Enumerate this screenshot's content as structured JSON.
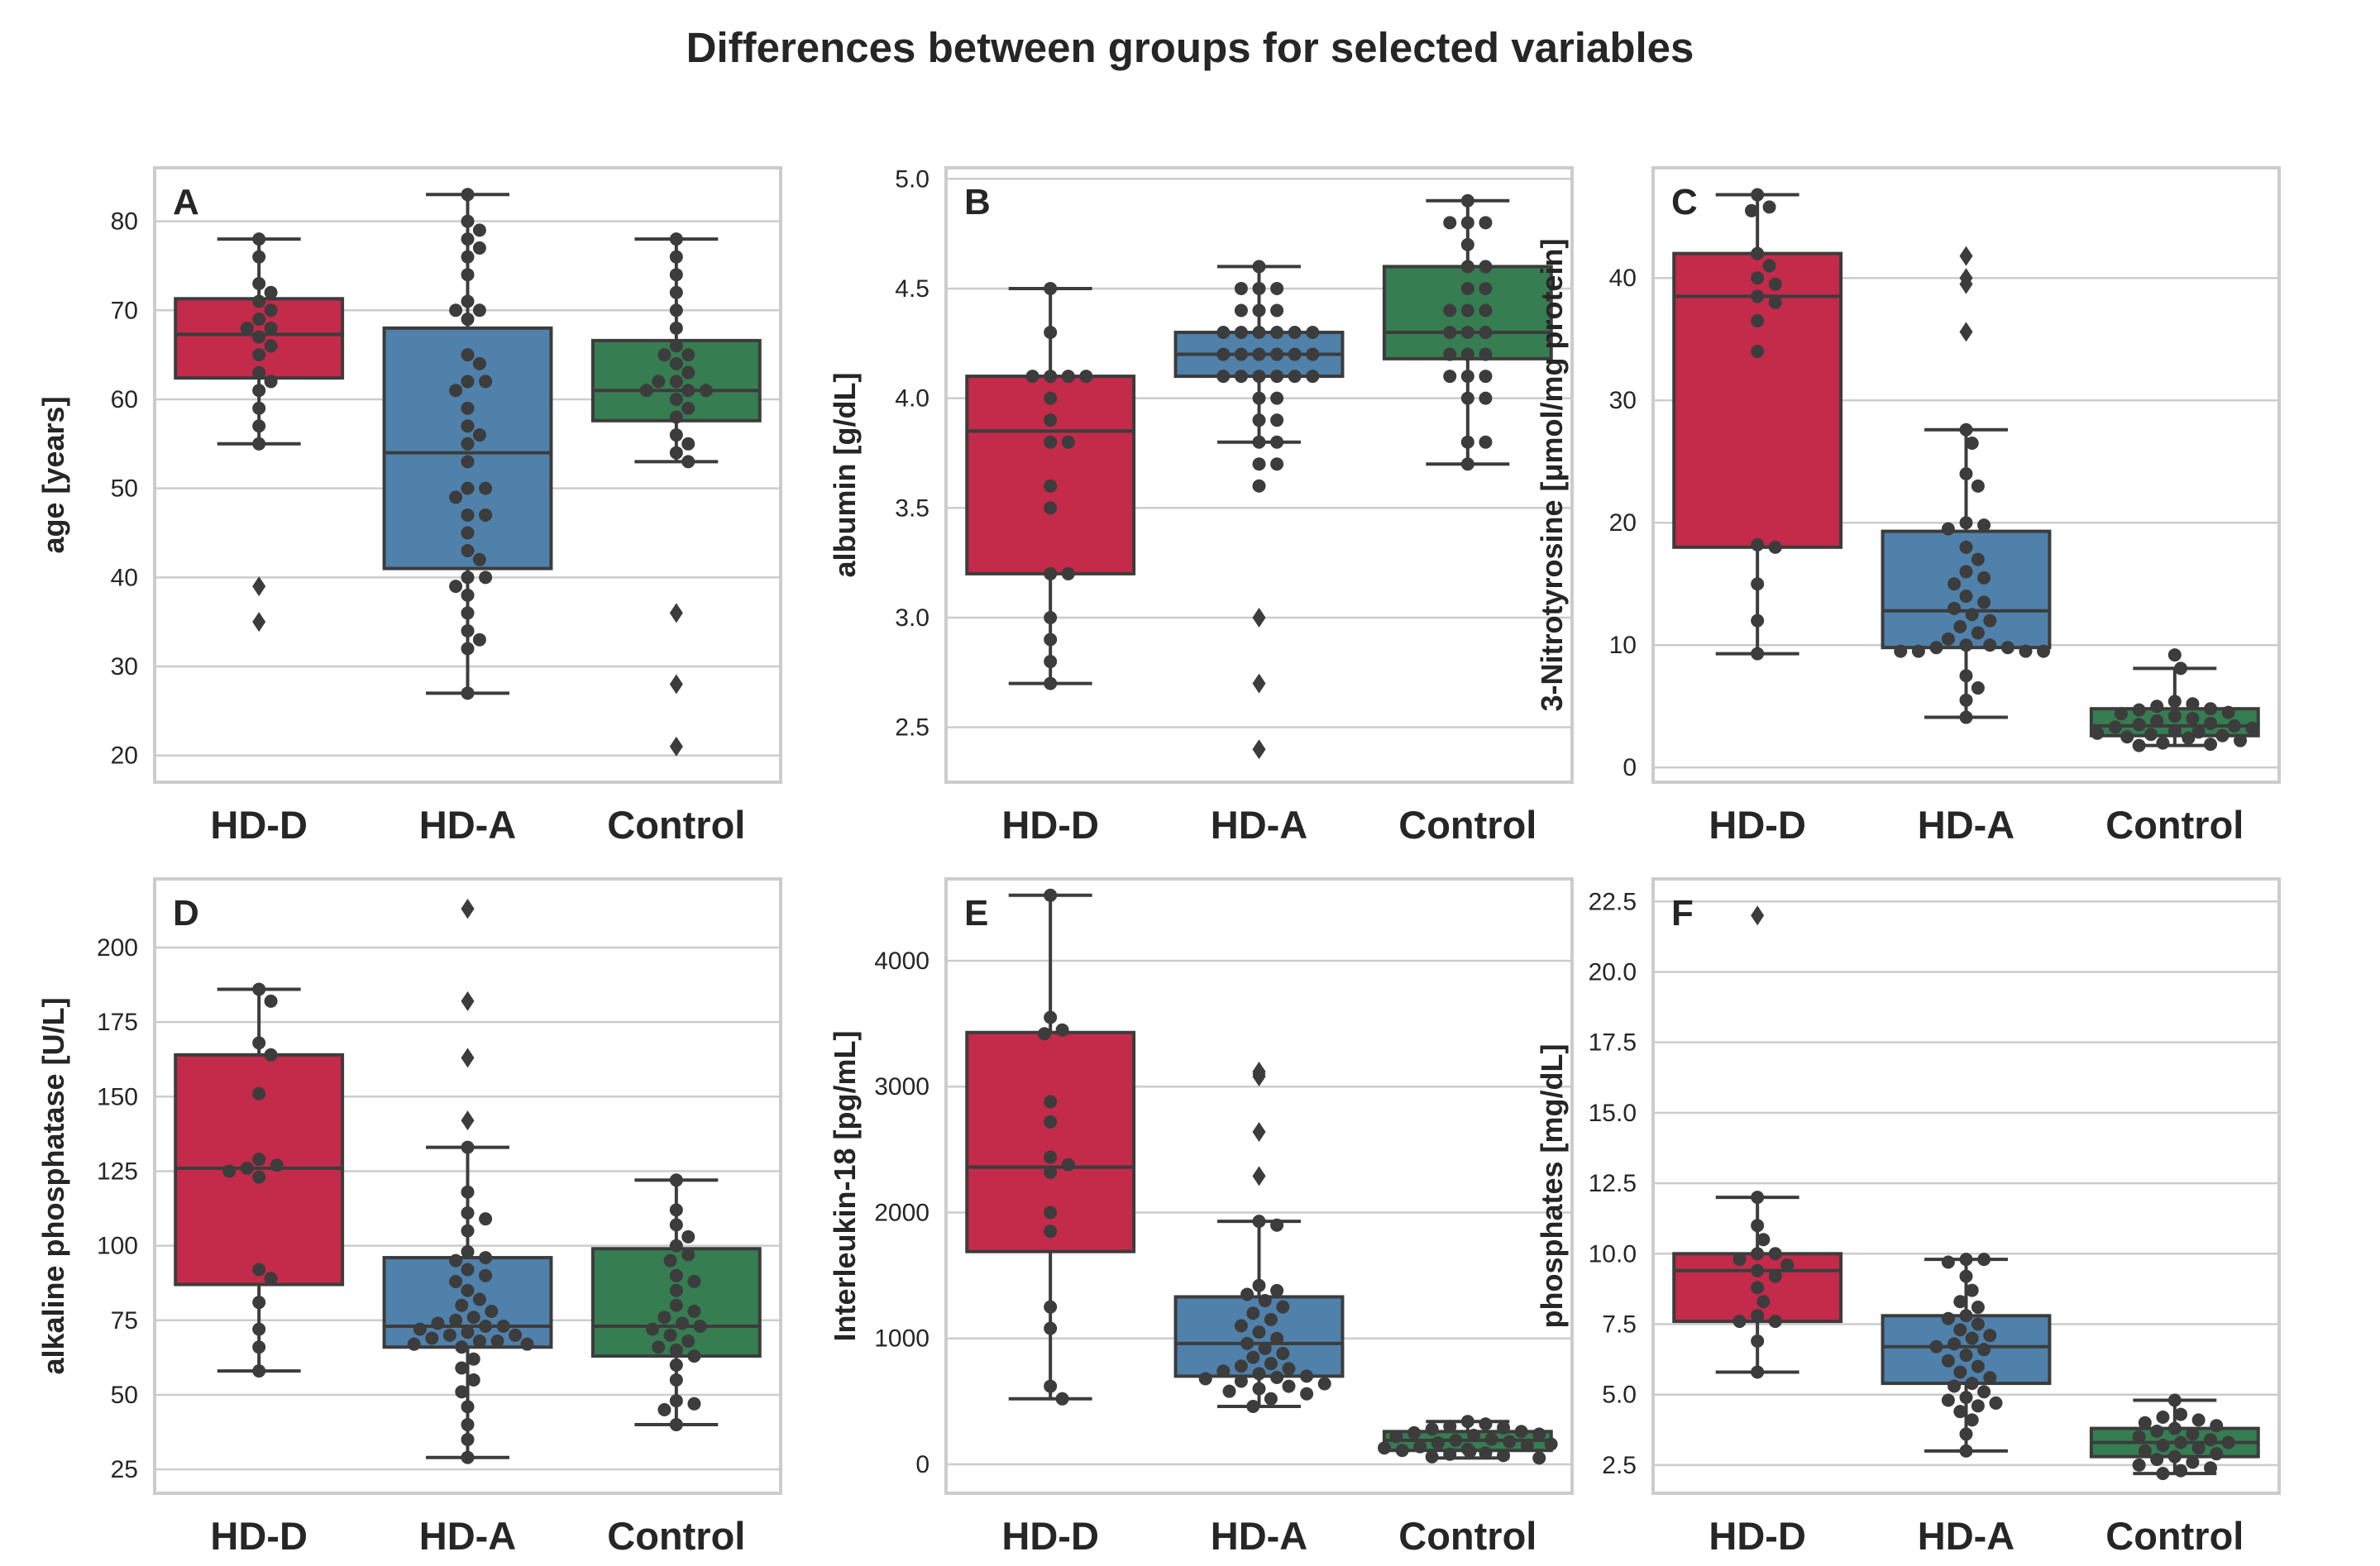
{
  "title": "Differences between groups for selected variables",
  "colors": {
    "HD-D": "#c42a4a",
    "HD-A": "#4f81ab",
    "Control": "#367d52",
    "point": "#3c3c3c",
    "grid": "#cccccc",
    "frame": "#cccccc"
  },
  "chart_data": [
    {
      "panel": "A",
      "type": "box",
      "ylabel": "age [years]",
      "ylim": [
        17,
        86
      ],
      "yticks": [
        20,
        30,
        40,
        50,
        60,
        70,
        80
      ],
      "tick_labels": [
        "20",
        "30",
        "40",
        "50",
        "60",
        "70",
        "80"
      ],
      "categories": [
        "HD-D",
        "HD-A",
        "Control"
      ],
      "boxes": [
        {
          "q1": 62.4,
          "median": 67.3,
          "q3": 71.3,
          "whislo": 55,
          "whishi": 78,
          "fliers": [
            39,
            35
          ],
          "points": [
            78,
            76,
            73,
            72,
            71,
            70,
            69,
            68,
            68,
            67,
            66,
            65,
            63,
            62,
            61,
            59,
            57,
            55
          ]
        },
        {
          "q1": 41,
          "median": 54,
          "q3": 68,
          "whislo": 27,
          "whishi": 83,
          "fliers": [],
          "points": [
            83,
            80,
            79,
            78,
            77,
            76,
            74,
            71,
            70,
            70,
            69,
            65,
            64,
            62,
            62,
            61,
            59,
            57,
            56,
            55,
            53,
            50,
            50,
            49,
            47,
            47,
            45,
            43,
            42,
            40,
            40,
            39,
            38,
            36,
            34,
            33,
            32,
            27
          ]
        },
        {
          "q1": 57.6,
          "median": 61,
          "q3": 66.6,
          "whislo": 53,
          "whishi": 78,
          "fliers": [
            36,
            28,
            21
          ],
          "points": [
            78,
            76,
            74,
            72,
            70,
            68,
            66,
            65,
            65,
            64,
            63,
            62,
            62,
            61,
            61,
            61,
            60,
            59,
            58,
            56,
            55,
            54,
            53
          ]
        }
      ]
    },
    {
      "panel": "B",
      "type": "box",
      "ylabel": "albumin [g/dL]",
      "ylim": [
        2.25,
        5.05
      ],
      "yticks": [
        2.5,
        3.0,
        3.5,
        4.0,
        4.5,
        5.0
      ],
      "tick_labels": [
        "2.5",
        "3.0",
        "3.5",
        "4.0",
        "4.5",
        "5.0"
      ],
      "categories": [
        "HD-D",
        "HD-A",
        "Control"
      ],
      "boxes": [
        {
          "q1": 3.2,
          "median": 3.85,
          "q3": 4.1,
          "whislo": 2.7,
          "whishi": 4.5,
          "fliers": [],
          "points": [
            4.5,
            4.3,
            4.1,
            4.1,
            4.1,
            4.1,
            4.0,
            3.9,
            3.8,
            3.8,
            3.6,
            3.5,
            3.2,
            3.2,
            3.0,
            2.9,
            2.8,
            2.7
          ]
        },
        {
          "q1": 4.1,
          "median": 4.2,
          "q3": 4.3,
          "whislo": 3.8,
          "whishi": 4.6,
          "fliers": [
            3.0,
            2.7,
            2.4
          ],
          "points": [
            4.6,
            4.5,
            4.5,
            4.5,
            4.4,
            4.4,
            4.4,
            4.3,
            4.3,
            4.3,
            4.3,
            4.3,
            4.3,
            4.2,
            4.2,
            4.2,
            4.2,
            4.2,
            4.2,
            4.1,
            4.1,
            4.1,
            4.1,
            4.1,
            4.1,
            4.0,
            4.0,
            3.9,
            3.9,
            3.8,
            3.8,
            3.7,
            3.7,
            3.6
          ]
        },
        {
          "q1": 4.18,
          "median": 4.3,
          "q3": 4.6,
          "whislo": 3.7,
          "whishi": 4.9,
          "fliers": [],
          "points": [
            4.9,
            4.8,
            4.8,
            4.8,
            4.7,
            4.6,
            4.6,
            4.5,
            4.5,
            4.4,
            4.4,
            4.4,
            4.3,
            4.3,
            4.3,
            4.2,
            4.2,
            4.2,
            4.1,
            4.1,
            4.1,
            4.0,
            4.0,
            3.8,
            3.8,
            3.7
          ]
        }
      ]
    },
    {
      "panel": "C",
      "type": "box",
      "ylabel": "3-Nitrotyrosine [μmol/mg protein]",
      "ylim": [
        -1.2,
        49
      ],
      "yticks": [
        0,
        10,
        20,
        30,
        40
      ],
      "tick_labels": [
        "0",
        "10",
        "20",
        "30",
        "40"
      ],
      "categories": [
        "HD-D",
        "HD-A",
        "Control"
      ],
      "boxes": [
        {
          "q1": 18,
          "median": 38.5,
          "q3": 42,
          "whislo": 9.3,
          "whishi": 46.8,
          "fliers": [],
          "points": [
            46.8,
            45.8,
            45.5,
            42,
            41,
            40,
            39.5,
            38.5,
            38,
            36.5,
            34,
            18.2,
            18,
            15,
            12,
            9.3
          ]
        },
        {
          "q1": 9.8,
          "median": 12.8,
          "q3": 19.3,
          "whislo": 4.1,
          "whishi": 27.6,
          "fliers": [
            41.8,
            40,
            39.5,
            35.6
          ],
          "points": [
            27.6,
            26.5,
            24,
            23,
            20,
            19.8,
            19.5,
            18,
            17,
            16,
            15.5,
            15,
            14,
            13.5,
            13,
            12.5,
            12,
            11.5,
            11,
            10.5,
            10,
            10,
            9.8,
            9.8,
            9.5,
            9.5,
            9.5,
            9.5,
            7.5,
            6.5,
            5.5,
            4.1
          ]
        },
        {
          "q1": 2.6,
          "median": 3.4,
          "q3": 4.8,
          "whislo": 1.8,
          "whishi": 8.1,
          "fliers": [],
          "points": [
            9.2,
            8.1,
            5.4,
            5.2,
            5.0,
            4.8,
            4.7,
            4.5,
            4.4,
            4.2,
            4.0,
            3.8,
            3.6,
            3.5,
            3.4,
            3.3,
            3.2,
            3.0,
            2.9,
            2.8,
            2.7,
            2.6,
            2.5,
            2.4,
            2.2,
            2.0,
            1.9,
            1.8
          ]
        }
      ]
    },
    {
      "panel": "D",
      "type": "box",
      "ylabel": "alkaline phosphatase [U/L]",
      "ylim": [
        17,
        223
      ],
      "yticks": [
        25,
        50,
        75,
        100,
        125,
        150,
        175,
        200
      ],
      "tick_labels": [
        "25",
        "50",
        "75",
        "100",
        "125",
        "150",
        "175",
        "200"
      ],
      "categories": [
        "HD-D",
        "HD-A",
        "Control"
      ],
      "boxes": [
        {
          "q1": 87,
          "median": 126,
          "q3": 164,
          "whislo": 58,
          "whishi": 186,
          "fliers": [],
          "points": [
            186,
            182,
            168,
            164,
            151,
            129,
            127,
            126,
            125,
            123,
            92,
            89,
            81,
            72,
            66,
            58
          ]
        },
        {
          "q1": 66,
          "median": 73,
          "q3": 96,
          "whislo": 29,
          "whishi": 133,
          "fliers": [
            213,
            213,
            182,
            163,
            142
          ],
          "points": [
            133,
            118,
            111,
            109,
            105,
            98,
            96,
            95,
            92,
            90,
            88,
            85,
            82,
            80,
            78,
            76,
            75,
            74,
            73,
            73,
            72,
            71,
            70,
            70,
            69,
            68,
            68,
            67,
            67,
            66,
            62,
            59,
            55,
            51,
            46,
            40,
            35,
            29
          ]
        },
        {
          "q1": 63,
          "median": 73,
          "q3": 99,
          "whislo": 40,
          "whishi": 122,
          "fliers": [],
          "points": [
            122,
            112,
            107,
            103,
            100,
            97,
            95,
            90,
            88,
            85,
            80,
            78,
            76,
            74,
            73,
            72,
            70,
            68,
            66,
            65,
            63,
            60,
            55,
            48,
            47,
            45,
            40
          ]
        }
      ]
    },
    {
      "panel": "E",
      "type": "box",
      "ylabel": "Interleukin-18 [pg/mL]",
      "ylim": [
        -230,
        4650
      ],
      "yticks": [
        0,
        1000,
        2000,
        3000,
        4000
      ],
      "tick_labels": [
        "0",
        "1000",
        "2000",
        "3000",
        "4000"
      ],
      "categories": [
        "HD-D",
        "HD-A",
        "Control"
      ],
      "boxes": [
        {
          "q1": 1690,
          "median": 2360,
          "q3": 3430,
          "whislo": 520,
          "whishi": 4520,
          "fliers": [],
          "points": [
            4520,
            3550,
            3450,
            3420,
            2880,
            2720,
            2440,
            2380,
            2320,
            2000,
            1850,
            1250,
            1080,
            620,
            520
          ]
        },
        {
          "q1": 700,
          "median": 960,
          "q3": 1330,
          "whislo": 460,
          "whishi": 1930,
          "fliers": [
            3120,
            3100,
            3080,
            2640,
            2290
          ],
          "points": [
            1930,
            1900,
            1420,
            1380,
            1350,
            1300,
            1250,
            1200,
            1150,
            1100,
            1050,
            1000,
            960,
            920,
            880,
            850,
            800,
            780,
            760,
            740,
            720,
            700,
            690,
            680,
            660,
            640,
            620,
            600,
            580,
            560,
            520,
            460
          ]
        },
        {
          "q1": 110,
          "median": 190,
          "q3": 260,
          "whislo": 50,
          "whishi": 340,
          "fliers": [],
          "points": [
            340,
            320,
            300,
            290,
            280,
            260,
            250,
            240,
            230,
            220,
            200,
            190,
            180,
            170,
            160,
            150,
            140,
            130,
            120,
            110,
            100,
            90,
            80,
            70,
            60,
            50
          ]
        }
      ]
    },
    {
      "panel": "F",
      "type": "box",
      "ylabel": "phosphates [mg/dL]",
      "ylim": [
        1.5,
        23.3
      ],
      "yticks": [
        2.5,
        5.0,
        7.5,
        10.0,
        12.5,
        15.0,
        17.5,
        20.0,
        22.5
      ],
      "tick_labels": [
        "2.5",
        "5.0",
        "7.5",
        "10.0",
        "12.5",
        "15.0",
        "17.5",
        "20.0",
        "22.5"
      ],
      "categories": [
        "HD-D",
        "HD-A",
        "Control"
      ],
      "boxes": [
        {
          "q1": 7.6,
          "median": 9.4,
          "q3": 10.0,
          "whislo": 5.8,
          "whishi": 12.0,
          "fliers": [
            22.0
          ],
          "points": [
            12.0,
            11.0,
            10.5,
            10.0,
            10.0,
            9.8,
            9.6,
            9.4,
            9.2,
            8.8,
            8.3,
            7.8,
            7.6,
            7.6,
            6.9,
            5.8
          ]
        },
        {
          "q1": 5.4,
          "median": 6.7,
          "q3": 7.8,
          "whislo": 3.0,
          "whishi": 9.8,
          "fliers": [],
          "points": [
            9.8,
            9.8,
            9.7,
            9.2,
            8.7,
            8.3,
            8.1,
            7.8,
            7.7,
            7.5,
            7.3,
            7.1,
            7.0,
            6.8,
            6.7,
            6.6,
            6.4,
            6.2,
            6.0,
            5.8,
            5.6,
            5.4,
            5.3,
            5.1,
            4.9,
            4.8,
            4.7,
            4.6,
            4.4,
            4.1,
            3.6,
            3.0
          ]
        },
        {
          "q1": 2.8,
          "median": 3.3,
          "q3": 3.8,
          "whislo": 2.2,
          "whishi": 4.8,
          "fliers": [],
          "points": [
            4.8,
            4.3,
            4.2,
            4.1,
            4.0,
            3.9,
            3.8,
            3.7,
            3.6,
            3.5,
            3.4,
            3.3,
            3.3,
            3.2,
            3.1,
            3.0,
            2.9,
            2.8,
            2.7,
            2.6,
            2.5,
            2.4,
            2.3,
            2.2
          ]
        }
      ]
    }
  ]
}
